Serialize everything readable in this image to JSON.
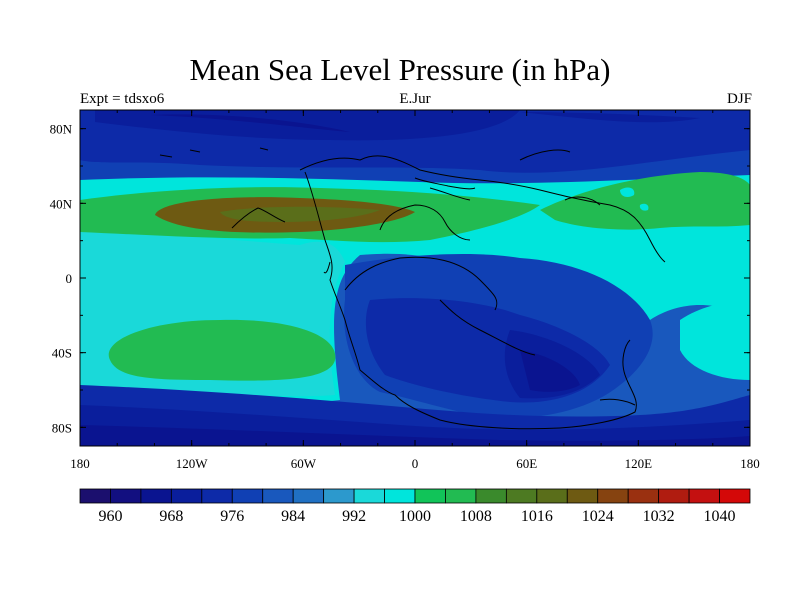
{
  "title": "Mean Sea Level Pressure (in hPa)",
  "subtitle_left": "Expt = tdsxo6",
  "subtitle_center": "E.Jur",
  "subtitle_right": "DJF",
  "lat_ticks": [
    {
      "value": 80,
      "label": "80N"
    },
    {
      "value": 40,
      "label": "40N"
    },
    {
      "value": 0,
      "label": "0"
    },
    {
      "value": -40,
      "label": "40S"
    },
    {
      "value": -80,
      "label": "80S"
    }
  ],
  "lon_ticks": [
    {
      "value": -180,
      "label": "180"
    },
    {
      "value": -120,
      "label": "120W"
    },
    {
      "value": -60,
      "label": "60W"
    },
    {
      "value": 0,
      "label": "0"
    },
    {
      "value": 60,
      "label": "60E"
    },
    {
      "value": 120,
      "label": "120E"
    },
    {
      "value": 180,
      "label": "180"
    }
  ],
  "colorbar": {
    "min": 956,
    "step": 4,
    "colors": [
      "#1b0f6e",
      "#120f80",
      "#0a1490",
      "#0a1e9c",
      "#0d2aa8",
      "#1040b4",
      "#1958bd",
      "#2070c3",
      "#2c99cd",
      "#1ad9d9",
      "#00e5dc",
      "#11c459",
      "#22bb52",
      "#3a8a2c",
      "#4d7a22",
      "#5a6e1a",
      "#6e5a12",
      "#864310",
      "#9a3010",
      "#b01c10",
      "#c41010",
      "#d40808"
    ],
    "labels": [
      "960",
      "968",
      "976",
      "984",
      "992",
      "1000",
      "1008",
      "1016",
      "1024",
      "1032",
      "1040"
    ]
  }
}
